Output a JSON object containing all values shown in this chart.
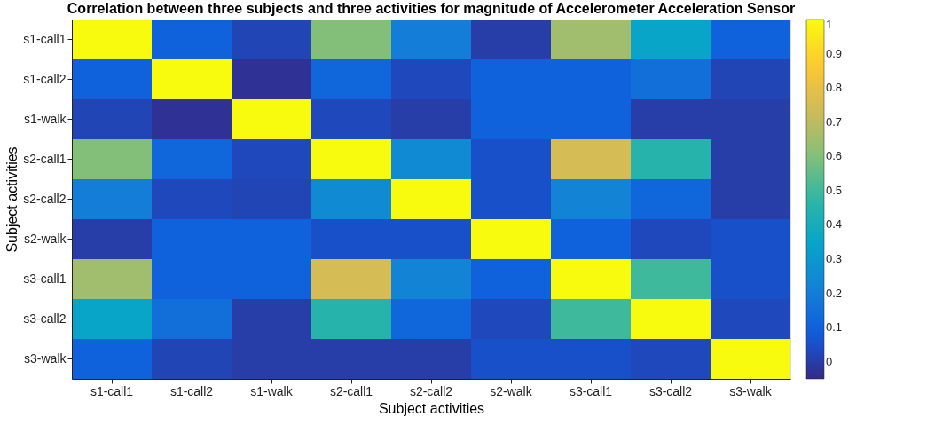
{
  "chart_data": {
    "type": "heatmap",
    "title": "Correlation between three subjects and three activities for magnitude of Accelerometer Acceleration Sensor",
    "xlabel": "Subject activities",
    "ylabel": "Subject activities",
    "categories": [
      "s1-call1",
      "s1-call2",
      "s1-walk",
      "s2-call1",
      "s2-call2",
      "s2-walk",
      "s3-call1",
      "s3-call2",
      "s3-walk"
    ],
    "y_categories": [
      "s1-call1",
      "s1-call2",
      "s1-walk",
      "s2-call1",
      "s2-call2",
      "s2-walk",
      "s3-call1",
      "s3-call2",
      "s3-walk"
    ],
    "cells": [
      [
        1,
        0.1,
        0.02,
        0.6,
        0.2,
        0.0,
        0.65,
        0.35,
        0.1
      ],
      [
        0.1,
        1,
        -0.03,
        0.12,
        0.03,
        0.1,
        0.1,
        0.15,
        0.02
      ],
      [
        0.02,
        -0.03,
        1,
        0.03,
        0.0,
        0.1,
        0.1,
        0.0,
        0.0
      ],
      [
        0.6,
        0.12,
        0.03,
        1,
        0.25,
        0.05,
        0.75,
        0.45,
        0.0
      ],
      [
        0.2,
        0.03,
        0.02,
        0.25,
        1,
        0.05,
        0.22,
        0.12,
        0.0
      ],
      [
        0.0,
        0.1,
        0.1,
        0.05,
        0.05,
        1,
        0.1,
        0.03,
        0.05
      ],
      [
        0.65,
        0.1,
        0.1,
        0.75,
        0.22,
        0.1,
        1,
        0.5,
        0.05
      ],
      [
        0.35,
        0.15,
        0.0,
        0.45,
        0.12,
        0.03,
        0.5,
        1,
        0.03
      ],
      [
        0.1,
        0.02,
        0.0,
        0.0,
        0.0,
        0.05,
        0.05,
        0.03,
        1
      ]
    ],
    "clim": [
      -0.05,
      1
    ],
    "cticks": [
      0,
      0.1,
      0.2,
      0.3,
      0.4,
      0.5,
      0.6,
      0.7,
      0.8,
      0.9,
      1
    ],
    "grid": false
  }
}
